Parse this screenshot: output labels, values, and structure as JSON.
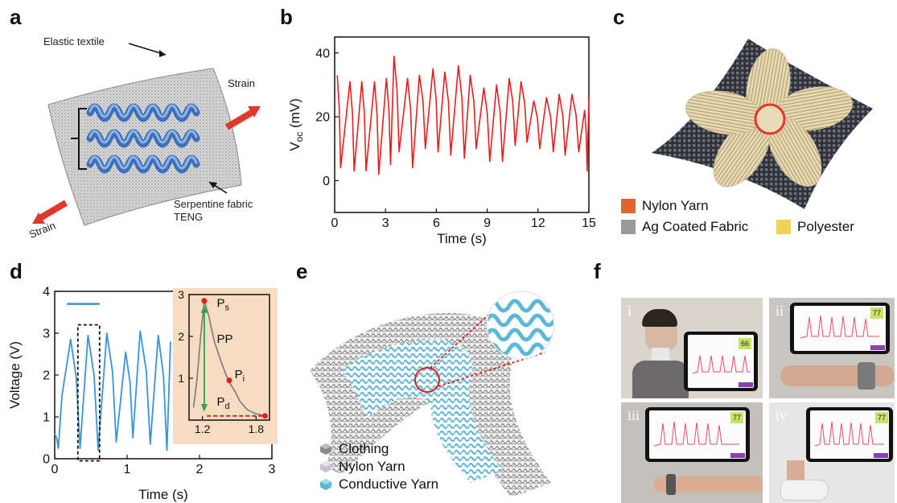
{
  "panels": {
    "a": {
      "letter": "a",
      "elastic_label": "Elastic textile",
      "strain_right": "Strain",
      "strain_left": "Strain",
      "teng_label_1": "Serpentine fabric",
      "teng_label_2": "TENG"
    },
    "b": {
      "letter": "b"
    },
    "c": {
      "letter": "c",
      "legend": [
        {
          "label": "Nylon Yarn",
          "color": "#e0652f"
        },
        {
          "label": "Ag Coated Fabric",
          "color": "#9a9a9a"
        },
        {
          "label": "Polyester",
          "color": "#f0d256"
        }
      ]
    },
    "d": {
      "letter": "d",
      "inset_labels": {
        "ps": "P",
        "ps_sub": "s",
        "pp": "PP",
        "pi": "P",
        "pi_sub": "i",
        "pd": "P",
        "pd_sub": "d"
      }
    },
    "e": {
      "letter": "e",
      "legend": [
        {
          "label": "Clothing",
          "color": "#8c8c8c"
        },
        {
          "label": "Nylon Yarn",
          "color": "#c9bfd2"
        },
        {
          "label": "Conductive Yarn",
          "color": "#5cb8d6"
        }
      ]
    },
    "f": {
      "letter": "f",
      "photos": [
        {
          "numeral": "i",
          "badge": "66"
        },
        {
          "numeral": "ii",
          "badge": "77"
        },
        {
          "numeral": "iii",
          "badge": "77"
        },
        {
          "numeral": "iv",
          "badge": "77"
        }
      ]
    }
  },
  "chart_data": [
    {
      "type": "line",
      "panel": "b",
      "xlabel": "Time (s)",
      "ylabel": "V",
      "ylabel_sub": "oc",
      "ylabel_unit": " (mV)",
      "xlim": [
        0,
        15
      ],
      "ylim": [
        -10,
        45
      ],
      "xticks": [
        0,
        3,
        6,
        9,
        12,
        15
      ],
      "yticks": [
        0,
        20,
        40
      ],
      "color": "#e02020",
      "series": [
        {
          "peaks": [
            [
              0.15,
              33
            ],
            [
              0.9,
              31
            ],
            [
              1.6,
              31
            ],
            [
              2.35,
              31
            ],
            [
              3.05,
              32
            ],
            [
              3.5,
              39
            ],
            [
              4.3,
              32
            ],
            [
              5.0,
              33
            ],
            [
              5.8,
              35
            ],
            [
              6.5,
              34
            ],
            [
              7.3,
              36
            ],
            [
              8.0,
              33
            ],
            [
              8.8,
              29
            ],
            [
              9.55,
              30
            ],
            [
              10.3,
              32
            ],
            [
              11.0,
              31
            ],
            [
              11.75,
              25
            ],
            [
              12.5,
              26
            ],
            [
              13.25,
              27
            ],
            [
              14.0,
              27
            ],
            [
              14.75,
              22
            ],
            [
              15.0,
              26
            ]
          ],
          "troughs": [
            [
              0.35,
              4
            ],
            [
              1.15,
              3
            ],
            [
              1.85,
              3
            ],
            [
              2.6,
              2
            ],
            [
              3.3,
              5
            ],
            [
              3.8,
              9
            ],
            [
              4.6,
              4
            ],
            [
              5.35,
              10
            ],
            [
              6.1,
              9
            ],
            [
              6.85,
              8
            ],
            [
              7.65,
              7
            ],
            [
              8.35,
              10
            ],
            [
              9.15,
              6
            ],
            [
              9.9,
              6
            ],
            [
              10.65,
              11
            ],
            [
              11.35,
              12
            ],
            [
              12.1,
              10
            ],
            [
              12.9,
              9
            ],
            [
              13.6,
              8
            ],
            [
              14.4,
              9
            ],
            [
              14.9,
              3
            ]
          ]
        }
      ]
    },
    {
      "type": "line",
      "panel": "d",
      "xlabel": "Time (s)",
      "ylabel": "Voltage (V)",
      "xlim": [
        0,
        3
      ],
      "ylim": [
        0,
        4
      ],
      "xticks": [
        0,
        1,
        2,
        3
      ],
      "yticks": [
        0,
        1,
        2,
        3,
        4
      ],
      "color": "#3b93d6",
      "series": [
        {
          "peaks": [
            [
              0.1,
              1.5
            ],
            [
              0.22,
              2.85
            ],
            [
              0.46,
              2.95
            ],
            [
              0.72,
              3.0
            ],
            [
              0.98,
              2.55
            ],
            [
              1.18,
              3.05
            ],
            [
              1.43,
              2.95
            ],
            [
              1.6,
              2.8
            ]
          ],
          "troughs": [
            [
              0.0,
              0.6
            ],
            [
              0.05,
              0.25
            ],
            [
              0.35,
              0.25
            ],
            [
              0.6,
              0.2
            ],
            [
              0.85,
              0.4
            ],
            [
              1.08,
              0.5
            ],
            [
              1.32,
              0.35
            ],
            [
              1.55,
              0.2
            ]
          ]
        }
      ]
    },
    {
      "type": "line",
      "panel": "d-inset",
      "xlim": [
        1.05,
        1.95
      ],
      "ylim": [
        0,
        3
      ],
      "xticks": [
        1.2,
        1.8
      ],
      "yticks": [
        1,
        2,
        3
      ],
      "color": "#7a7a7a",
      "series": [
        {
          "points": [
            [
              1.1,
              0.3
            ],
            [
              1.14,
              1.0
            ],
            [
              1.18,
              2.0
            ],
            [
              1.22,
              2.85
            ],
            [
              1.27,
              2.5
            ],
            [
              1.33,
              1.9
            ],
            [
              1.4,
              1.45
            ],
            [
              1.46,
              1.1
            ],
            [
              1.5,
              0.9
            ],
            [
              1.56,
              0.7
            ],
            [
              1.62,
              0.45
            ],
            [
              1.7,
              0.25
            ],
            [
              1.8,
              0.15
            ],
            [
              1.9,
              0.1
            ]
          ]
        }
      ],
      "markers": [
        [
          1.22,
          2.85
        ],
        [
          1.5,
          0.95
        ],
        [
          1.9,
          0.1
        ]
      ]
    }
  ]
}
